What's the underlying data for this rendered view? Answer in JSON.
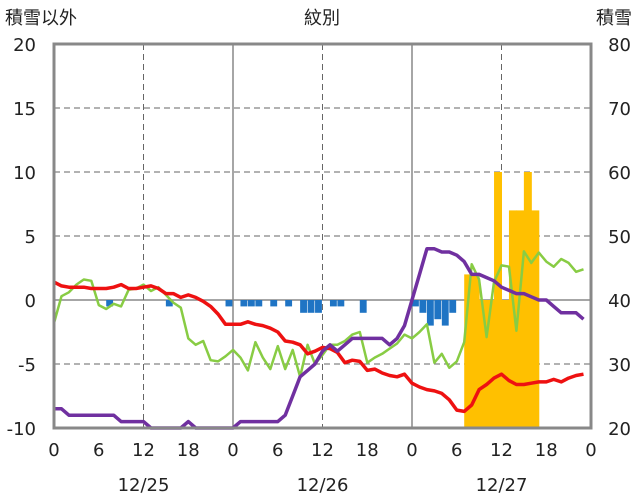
{
  "chart_data": {
    "type": "line",
    "title": "紋別",
    "left_axis_label": "積雪以外",
    "right_axis_label": "積雪",
    "left_ylim": [
      -10,
      20
    ],
    "left_yticks": [
      "20",
      "15",
      "10",
      "5",
      "0",
      "-5",
      "-10"
    ],
    "right_ylim": [
      20,
      80
    ],
    "right_yticks": [
      "80",
      "70",
      "60",
      "50",
      "40",
      "30",
      "20"
    ],
    "xlim": [
      0,
      72
    ],
    "x_tick_hours": [
      0,
      6,
      12,
      18,
      24,
      30,
      36,
      42,
      48,
      54,
      60,
      66,
      72
    ],
    "x_tick_labels": [
      "0",
      "6",
      "12",
      "18",
      "0",
      "6",
      "12",
      "18",
      "0",
      "6",
      "12",
      "18",
      "0"
    ],
    "date_labels": [
      {
        "hour": 12,
        "label": "12/25"
      },
      {
        "hour": 36,
        "label": "12/26"
      },
      {
        "hour": 60,
        "label": "12/27"
      }
    ],
    "grid": {
      "day_lines_solid": true,
      "dashed_vertical": [
        12,
        36,
        60
      ],
      "dashed_horizontal": [
        15,
        10,
        5,
        -5
      ]
    },
    "colors": {
      "temperature": "#ee1111",
      "humidity": "#88cc44",
      "wind": "#7030a0",
      "precip": "#1f74c4",
      "snow": "#ffc000",
      "axes": "#888888"
    },
    "series": [
      {
        "key": "temperature",
        "axis": "left",
        "x": [
          0,
          1,
          2,
          3,
          4,
          5,
          6,
          7,
          8,
          9,
          10,
          11,
          12,
          13,
          14,
          15,
          16,
          17,
          18,
          19,
          20,
          21,
          22,
          23,
          24,
          25,
          26,
          27,
          28,
          29,
          30,
          31,
          32,
          33,
          34,
          35,
          36,
          37,
          38,
          39,
          40,
          41,
          42,
          43,
          44,
          45,
          46,
          47,
          48,
          49,
          50,
          51,
          52,
          53,
          54,
          55,
          56,
          57,
          58,
          59,
          60,
          61,
          62,
          63,
          64,
          65,
          66,
          67,
          68,
          69,
          70,
          71
        ],
        "values": [
          1.4,
          1.1,
          1.0,
          1.0,
          1.0,
          0.9,
          0.9,
          0.9,
          1.0,
          1.2,
          0.9,
          0.9,
          1.0,
          1.1,
          0.9,
          0.5,
          0.5,
          0.2,
          0.4,
          0.2,
          -0.1,
          -0.5,
          -1.1,
          -1.9,
          -1.9,
          -1.9,
          -1.7,
          -1.9,
          -2.0,
          -2.2,
          -2.5,
          -3.2,
          -3.3,
          -3.5,
          -4.2,
          -4.0,
          -3.7,
          -3.8,
          -4.1,
          -4.9,
          -4.7,
          -4.8,
          -5.5,
          -5.4,
          -5.7,
          -5.9,
          -6.0,
          -5.8,
          -6.5,
          -6.8,
          -7.0,
          -7.1,
          -7.3,
          -7.8,
          -8.6,
          -8.7,
          -8.2,
          -7.0,
          -6.6,
          -6.1,
          -5.8,
          -6.3,
          -6.6,
          -6.6,
          -6.5,
          -6.4,
          -6.4,
          -6.2,
          -6.4,
          -6.1,
          -5.9,
          -5.8
        ]
      },
      {
        "key": "humidity",
        "axis": "left",
        "x": [
          0,
          1,
          2,
          3,
          4,
          5,
          6,
          7,
          8,
          9,
          10,
          11,
          12,
          13,
          14,
          15,
          16,
          17,
          18,
          19,
          20,
          21,
          22,
          23,
          24,
          25,
          26,
          27,
          28,
          29,
          30,
          31,
          32,
          33,
          34,
          35,
          36,
          37,
          38,
          39,
          40,
          41,
          42,
          43,
          44,
          45,
          46,
          47,
          48,
          49,
          50,
          51,
          52,
          53,
          54,
          55,
          56,
          57,
          58,
          59,
          60,
          61,
          62,
          63,
          64,
          65,
          66,
          67,
          68,
          69,
          70,
          71
        ],
        "values": [
          -1.8,
          0.3,
          0.6,
          1.2,
          1.6,
          1.5,
          -0.4,
          -0.7,
          -0.3,
          -0.5,
          0.8,
          0.9,
          1.2,
          0.7,
          1.0,
          0.4,
          -0.2,
          -0.6,
          -3.0,
          -3.5,
          -3.2,
          -4.7,
          -4.8,
          -4.4,
          -3.9,
          -4.5,
          -5.5,
          -3.3,
          -4.5,
          -5.4,
          -3.6,
          -5.4,
          -3.9,
          -6.0,
          -3.5,
          -5.0,
          -4.3,
          -3.5,
          -3.5,
          -3.2,
          -2.7,
          -2.5,
          -4.9,
          -4.5,
          -4.2,
          -3.8,
          -3.4,
          -2.7,
          -3.0,
          -2.5,
          -1.9,
          -4.9,
          -4.2,
          -5.3,
          -4.8,
          -3.3,
          2.8,
          1.6,
          -2.9,
          1.4,
          2.7,
          2.6,
          -2.4,
          3.8,
          2.9,
          3.7,
          3.0,
          2.6,
          3.2,
          2.9,
          2.2,
          2.4
        ]
      },
      {
        "key": "wind",
        "axis": "right",
        "x": [
          0,
          1,
          2,
          3,
          4,
          5,
          6,
          7,
          8,
          9,
          10,
          11,
          12,
          13,
          14,
          15,
          16,
          17,
          18,
          19,
          20,
          21,
          22,
          23,
          24,
          25,
          26,
          27,
          28,
          29,
          30,
          31,
          32,
          33,
          34,
          35,
          36,
          37,
          38,
          39,
          40,
          41,
          42,
          43,
          44,
          45,
          46,
          47,
          48,
          49,
          50,
          51,
          52,
          53,
          54,
          55,
          56,
          57,
          58,
          59,
          60,
          61,
          62,
          63,
          64,
          65,
          66,
          67,
          68,
          69,
          70,
          71
        ],
        "values": [
          23,
          23,
          22,
          22,
          22,
          22,
          22,
          22,
          22,
          21,
          21,
          21,
          21,
          20,
          20,
          20,
          20,
          20,
          21,
          20,
          20,
          20,
          20,
          20,
          20,
          21,
          21,
          21,
          21,
          21,
          21,
          22,
          25,
          28,
          29,
          30,
          32,
          33,
          32,
          33,
          34,
          34,
          34,
          34,
          34,
          33,
          34,
          36,
          40,
          44,
          48,
          48,
          47.5,
          47.5,
          47,
          46,
          44,
          44,
          43.5,
          43,
          42,
          41.5,
          41,
          41,
          40.5,
          40,
          40,
          39,
          38,
          38,
          38,
          37
        ]
      }
    ],
    "bars": [
      {
        "key": "precip",
        "axis": "left",
        "x": [
          7,
          15,
          23,
          25,
          26,
          27,
          29,
          31,
          33,
          34,
          35,
          37,
          38,
          41,
          48,
          49,
          50,
          51,
          52,
          53,
          60,
          61
        ],
        "values": [
          -0.5,
          -0.5,
          -0.5,
          -0.5,
          -0.5,
          -0.5,
          -0.5,
          -0.5,
          -1.0,
          -1.0,
          -1.0,
          -0.5,
          -0.5,
          -1.0,
          -0.5,
          -1.0,
          -2.0,
          -1.5,
          -2.0,
          -1.0,
          -0.5,
          -0.5
        ]
      },
      {
        "key": "snow",
        "axis": "right",
        "x": [
          55,
          56,
          57,
          58,
          59,
          60,
          61,
          62,
          63,
          64
        ],
        "values": [
          44,
          44,
          40,
          40,
          60,
          40,
          54,
          54,
          60,
          54
        ]
      }
    ]
  }
}
